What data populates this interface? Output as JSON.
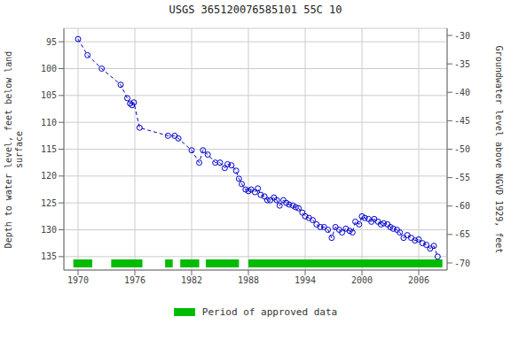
{
  "chart_data": {
    "type": "line",
    "title": "USGS 365120076585101 55C 10",
    "y_label": "Depth to water level, feet below land\nsurface",
    "y2_label": "Groundwater level above NGVD 1929, feet",
    "x": [
      1970.0,
      1971.0,
      1972.5,
      1974.5,
      1975.2,
      1975.5,
      1975.7,
      1975.9,
      1976.5,
      1979.5,
      1980.2,
      1980.6,
      1982.0,
      1982.8,
      1983.2,
      1983.7,
      1984.5,
      1985.0,
      1985.5,
      1985.8,
      1986.2,
      1986.7,
      1987.0,
      1987.3,
      1987.7,
      1988.0,
      1988.3,
      1988.7,
      1989.0,
      1989.3,
      1989.7,
      1990.0,
      1990.3,
      1990.7,
      1991.0,
      1991.3,
      1991.7,
      1992.0,
      1992.3,
      1992.7,
      1993.0,
      1993.3,
      1993.7,
      1994.0,
      1994.4,
      1994.8,
      1995.2,
      1995.6,
      1996.0,
      1996.4,
      1996.8,
      1997.2,
      1997.6,
      1997.9,
      1998.3,
      1998.7,
      1999.0,
      1999.3,
      1999.7,
      2000.0,
      2000.3,
      2000.7,
      2001.0,
      2001.3,
      2001.7,
      2002.0,
      2002.3,
      2002.7,
      2003.0,
      2003.3,
      2003.7,
      2004.0,
      2004.4,
      2004.8,
      2005.2,
      2005.6,
      2006.0,
      2006.4,
      2006.8,
      2007.2,
      2007.6,
      2008.0
    ],
    "series": [
      {
        "color": "#0000cc",
        "marker": "circle",
        "line_style": "dashed",
        "values": [
          94.5,
          97.5,
          100.0,
          103.0,
          105.5,
          106.5,
          106.8,
          106.3,
          111.0,
          112.5,
          112.5,
          113.0,
          115.2,
          117.5,
          115.2,
          116.0,
          117.5,
          117.5,
          118.5,
          117.8,
          118.0,
          119.0,
          120.5,
          121.5,
          122.5,
          122.8,
          122.5,
          123.0,
          122.3,
          123.5,
          123.8,
          124.5,
          124.5,
          124.0,
          124.5,
          125.5,
          124.5,
          125.0,
          125.3,
          125.5,
          125.8,
          126.0,
          126.8,
          127.5,
          127.8,
          128.2,
          129.0,
          129.5,
          129.5,
          130.0,
          131.5,
          129.5,
          130.0,
          130.5,
          129.8,
          130.2,
          130.5,
          128.5,
          129.0,
          127.5,
          127.8,
          128.0,
          128.5,
          128.0,
          128.5,
          129.0,
          128.8,
          129.0,
          129.5,
          129.8,
          130.0,
          130.5,
          131.5,
          131.0,
          131.5,
          132.0,
          131.8,
          132.5,
          132.8,
          133.5,
          133.0,
          135.0
        ]
      }
    ],
    "approved_segments": {
      "name": "Period of approved data",
      "color": "#00bb00",
      "segments": [
        [
          1969.5,
          1971.5
        ],
        [
          1973.5,
          1976.8
        ],
        [
          1979.2,
          1980.0
        ],
        [
          1980.8,
          1982.8
        ],
        [
          1983.5,
          1987.0
        ],
        [
          1988.0,
          2008.5
        ]
      ]
    },
    "xlim": [
      1968.5,
      2009.0
    ],
    "xticks": [
      1970,
      1976,
      1982,
      1988,
      1994,
      2000,
      2006
    ],
    "ylim": [
      137.5,
      92.5
    ],
    "yticks": [
      95,
      100,
      105,
      110,
      115,
      120,
      125,
      130,
      135
    ],
    "y2lim": [
      -71.25,
      -28.75
    ],
    "y2ticks": [
      -30,
      -35,
      -40,
      -45,
      -50,
      -55,
      -60,
      -65,
      -70
    ],
    "grid": true
  }
}
